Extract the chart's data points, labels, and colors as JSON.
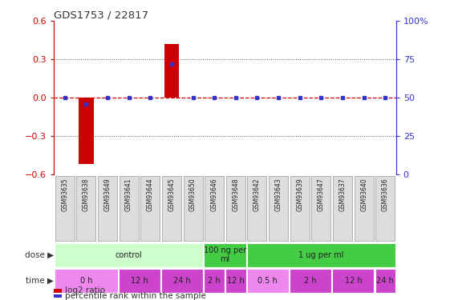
{
  "title": "GDS1753 / 22817",
  "samples": [
    "GSM93635",
    "GSM93638",
    "GSM93649",
    "GSM93641",
    "GSM93644",
    "GSM93645",
    "GSM93650",
    "GSM93646",
    "GSM93648",
    "GSM93642",
    "GSM93643",
    "GSM93639",
    "GSM93647",
    "GSM93637",
    "GSM93640",
    "GSM93636"
  ],
  "log2_ratio": [
    0,
    -0.52,
    0,
    0,
    0,
    0.42,
    0,
    0,
    0,
    0,
    0,
    0,
    0,
    0,
    0,
    0
  ],
  "percentile_rank": [
    50,
    46,
    50,
    50,
    50,
    72,
    50,
    50,
    50,
    50,
    50,
    50,
    50,
    50,
    50,
    50
  ],
  "ylim": [
    -0.6,
    0.6
  ],
  "y2lim": [
    0,
    100
  ],
  "yticks": [
    -0.6,
    -0.3,
    0,
    0.3,
    0.6
  ],
  "y2ticks": [
    0,
    25,
    50,
    75,
    100
  ],
  "y2ticklabels": [
    "0",
    "25",
    "50",
    "75",
    "100%"
  ],
  "bar_color": "#cc0000",
  "dot_color": "#3333cc",
  "zero_line_color": "#cc0000",
  "grid_line_color": "#555555",
  "dose_groups": [
    {
      "label": "control",
      "start": 0,
      "end": 7,
      "color": "#ccffcc"
    },
    {
      "label": "100 ng per\nml",
      "start": 7,
      "end": 9,
      "color": "#44cc44"
    },
    {
      "label": "1 ug per ml",
      "start": 9,
      "end": 16,
      "color": "#44cc44"
    }
  ],
  "time_groups": [
    {
      "label": "0 h",
      "start": 0,
      "end": 3,
      "color": "#ee88ee"
    },
    {
      "label": "12 h",
      "start": 3,
      "end": 5,
      "color": "#cc44cc"
    },
    {
      "label": "24 h",
      "start": 5,
      "end": 7,
      "color": "#cc44cc"
    },
    {
      "label": "2 h",
      "start": 7,
      "end": 8,
      "color": "#cc44cc"
    },
    {
      "label": "12 h",
      "start": 8,
      "end": 9,
      "color": "#cc44cc"
    },
    {
      "label": "0.5 h",
      "start": 9,
      "end": 11,
      "color": "#ee88ee"
    },
    {
      "label": "2 h",
      "start": 11,
      "end": 13,
      "color": "#cc44cc"
    },
    {
      "label": "12 h",
      "start": 13,
      "end": 15,
      "color": "#cc44cc"
    },
    {
      "label": "24 h",
      "start": 15,
      "end": 16,
      "color": "#cc44cc"
    }
  ],
  "dose_label": "dose",
  "time_label": "time",
  "legend_entries": [
    "log2 ratio",
    "percentile rank within the sample"
  ],
  "legend_colors": [
    "#cc0000",
    "#3333cc"
  ],
  "bg_color": "#ffffff",
  "tick_label_color_left": "#cc0000",
  "tick_label_color_right": "#3333cc",
  "sample_bg_color": "#dddddd",
  "sample_border_color": "#999999"
}
